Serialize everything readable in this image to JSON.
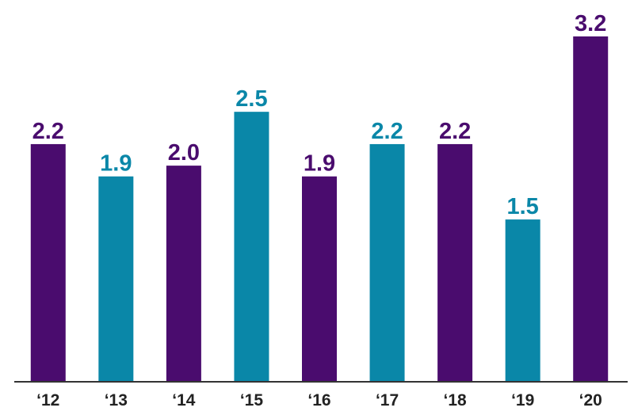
{
  "chart_data": {
    "type": "bar",
    "categories": [
      "‘12",
      "‘13",
      "‘14",
      "‘15",
      "‘16",
      "‘17",
      "‘18",
      "‘19",
      "‘20"
    ],
    "values": [
      2.2,
      1.9,
      2.0,
      2.5,
      1.9,
      2.2,
      2.2,
      1.5,
      3.2
    ],
    "value_labels": [
      "2.2",
      "1.9",
      "2.0",
      "2.5",
      "1.9",
      "2.2",
      "2.2",
      "1.5",
      "3.2"
    ],
    "colors": [
      "#4a0c6e",
      "#0a87a8",
      "#4a0c6e",
      "#0a87a8",
      "#4a0c6e",
      "#0a87a8",
      "#4a0c6e",
      "#0a87a8",
      "#4a0c6e"
    ],
    "ylim": [
      0,
      3.2
    ]
  }
}
